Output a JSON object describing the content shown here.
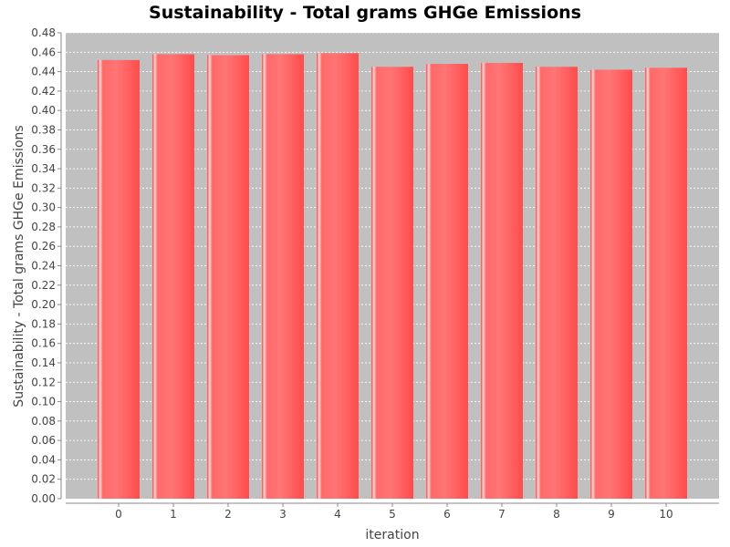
{
  "chart_data": {
    "type": "bar",
    "title": "Sustainability -  Total grams GHGe Emissions",
    "xlabel": "iteration",
    "ylabel": "Sustainability -  Total grams GHGe Emissions",
    "categories": [
      "0",
      "1",
      "2",
      "3",
      "4",
      "5",
      "6",
      "7",
      "8",
      "9",
      "10"
    ],
    "values": [
      0.452,
      0.458,
      0.457,
      0.458,
      0.459,
      0.445,
      0.448,
      0.449,
      0.445,
      0.442,
      0.444
    ],
    "ylim": [
      0,
      0.48
    ],
    "yticks": [
      "0.00",
      "0.02",
      "0.04",
      "0.06",
      "0.08",
      "0.10",
      "0.12",
      "0.14",
      "0.16",
      "0.18",
      "0.20",
      "0.22",
      "0.24",
      "0.26",
      "0.28",
      "0.30",
      "0.32",
      "0.34",
      "0.36",
      "0.38",
      "0.40",
      "0.42",
      "0.44",
      "0.46",
      "0.48"
    ],
    "grid": true,
    "legend": "none",
    "colors": {
      "bar": "#ff5555",
      "bar_highlight": "#ffd6d6",
      "plot_background": "#c0c0c0",
      "gridline": "#ffffff"
    }
  }
}
